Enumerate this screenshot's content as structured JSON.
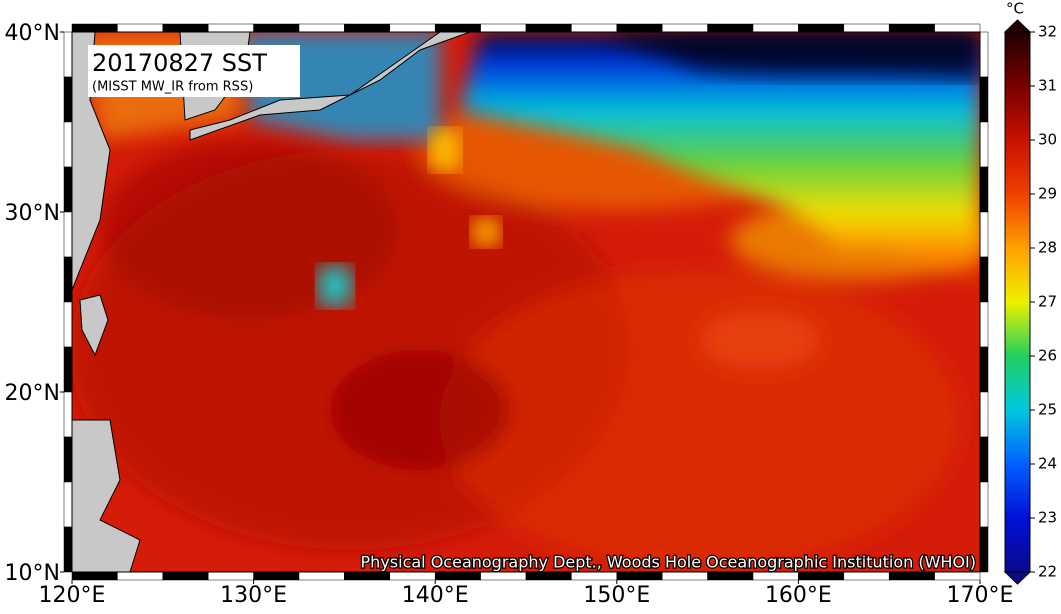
{
  "map": {
    "title": "20170827 SST",
    "subtitle": "(MISST MW_IR from RSS)",
    "credit": "Physical Oceanography Dept., Woods Hole Oceanographic Institution (WHOI)",
    "lon_range": [
      120,
      170
    ],
    "lat_range": [
      10,
      40
    ],
    "lon_ticks": [
      {
        "value": 120,
        "label": "120°E"
      },
      {
        "value": 130,
        "label": "130°E"
      },
      {
        "value": 140,
        "label": "140°E"
      },
      {
        "value": 150,
        "label": "150°E"
      },
      {
        "value": 160,
        "label": "160°E"
      },
      {
        "value": 170,
        "label": "170°E"
      }
    ],
    "lat_ticks": [
      {
        "value": 10,
        "label": "10°N"
      },
      {
        "value": 20,
        "label": "20°N"
      },
      {
        "value": 30,
        "label": "30°N"
      },
      {
        "value": 40,
        "label": "40°N"
      }
    ]
  },
  "colorbar": {
    "unit": "°C",
    "range": [
      22,
      32
    ],
    "ticks": [
      22,
      23,
      24,
      25,
      26,
      27,
      28,
      29,
      30,
      31,
      32
    ]
  }
}
